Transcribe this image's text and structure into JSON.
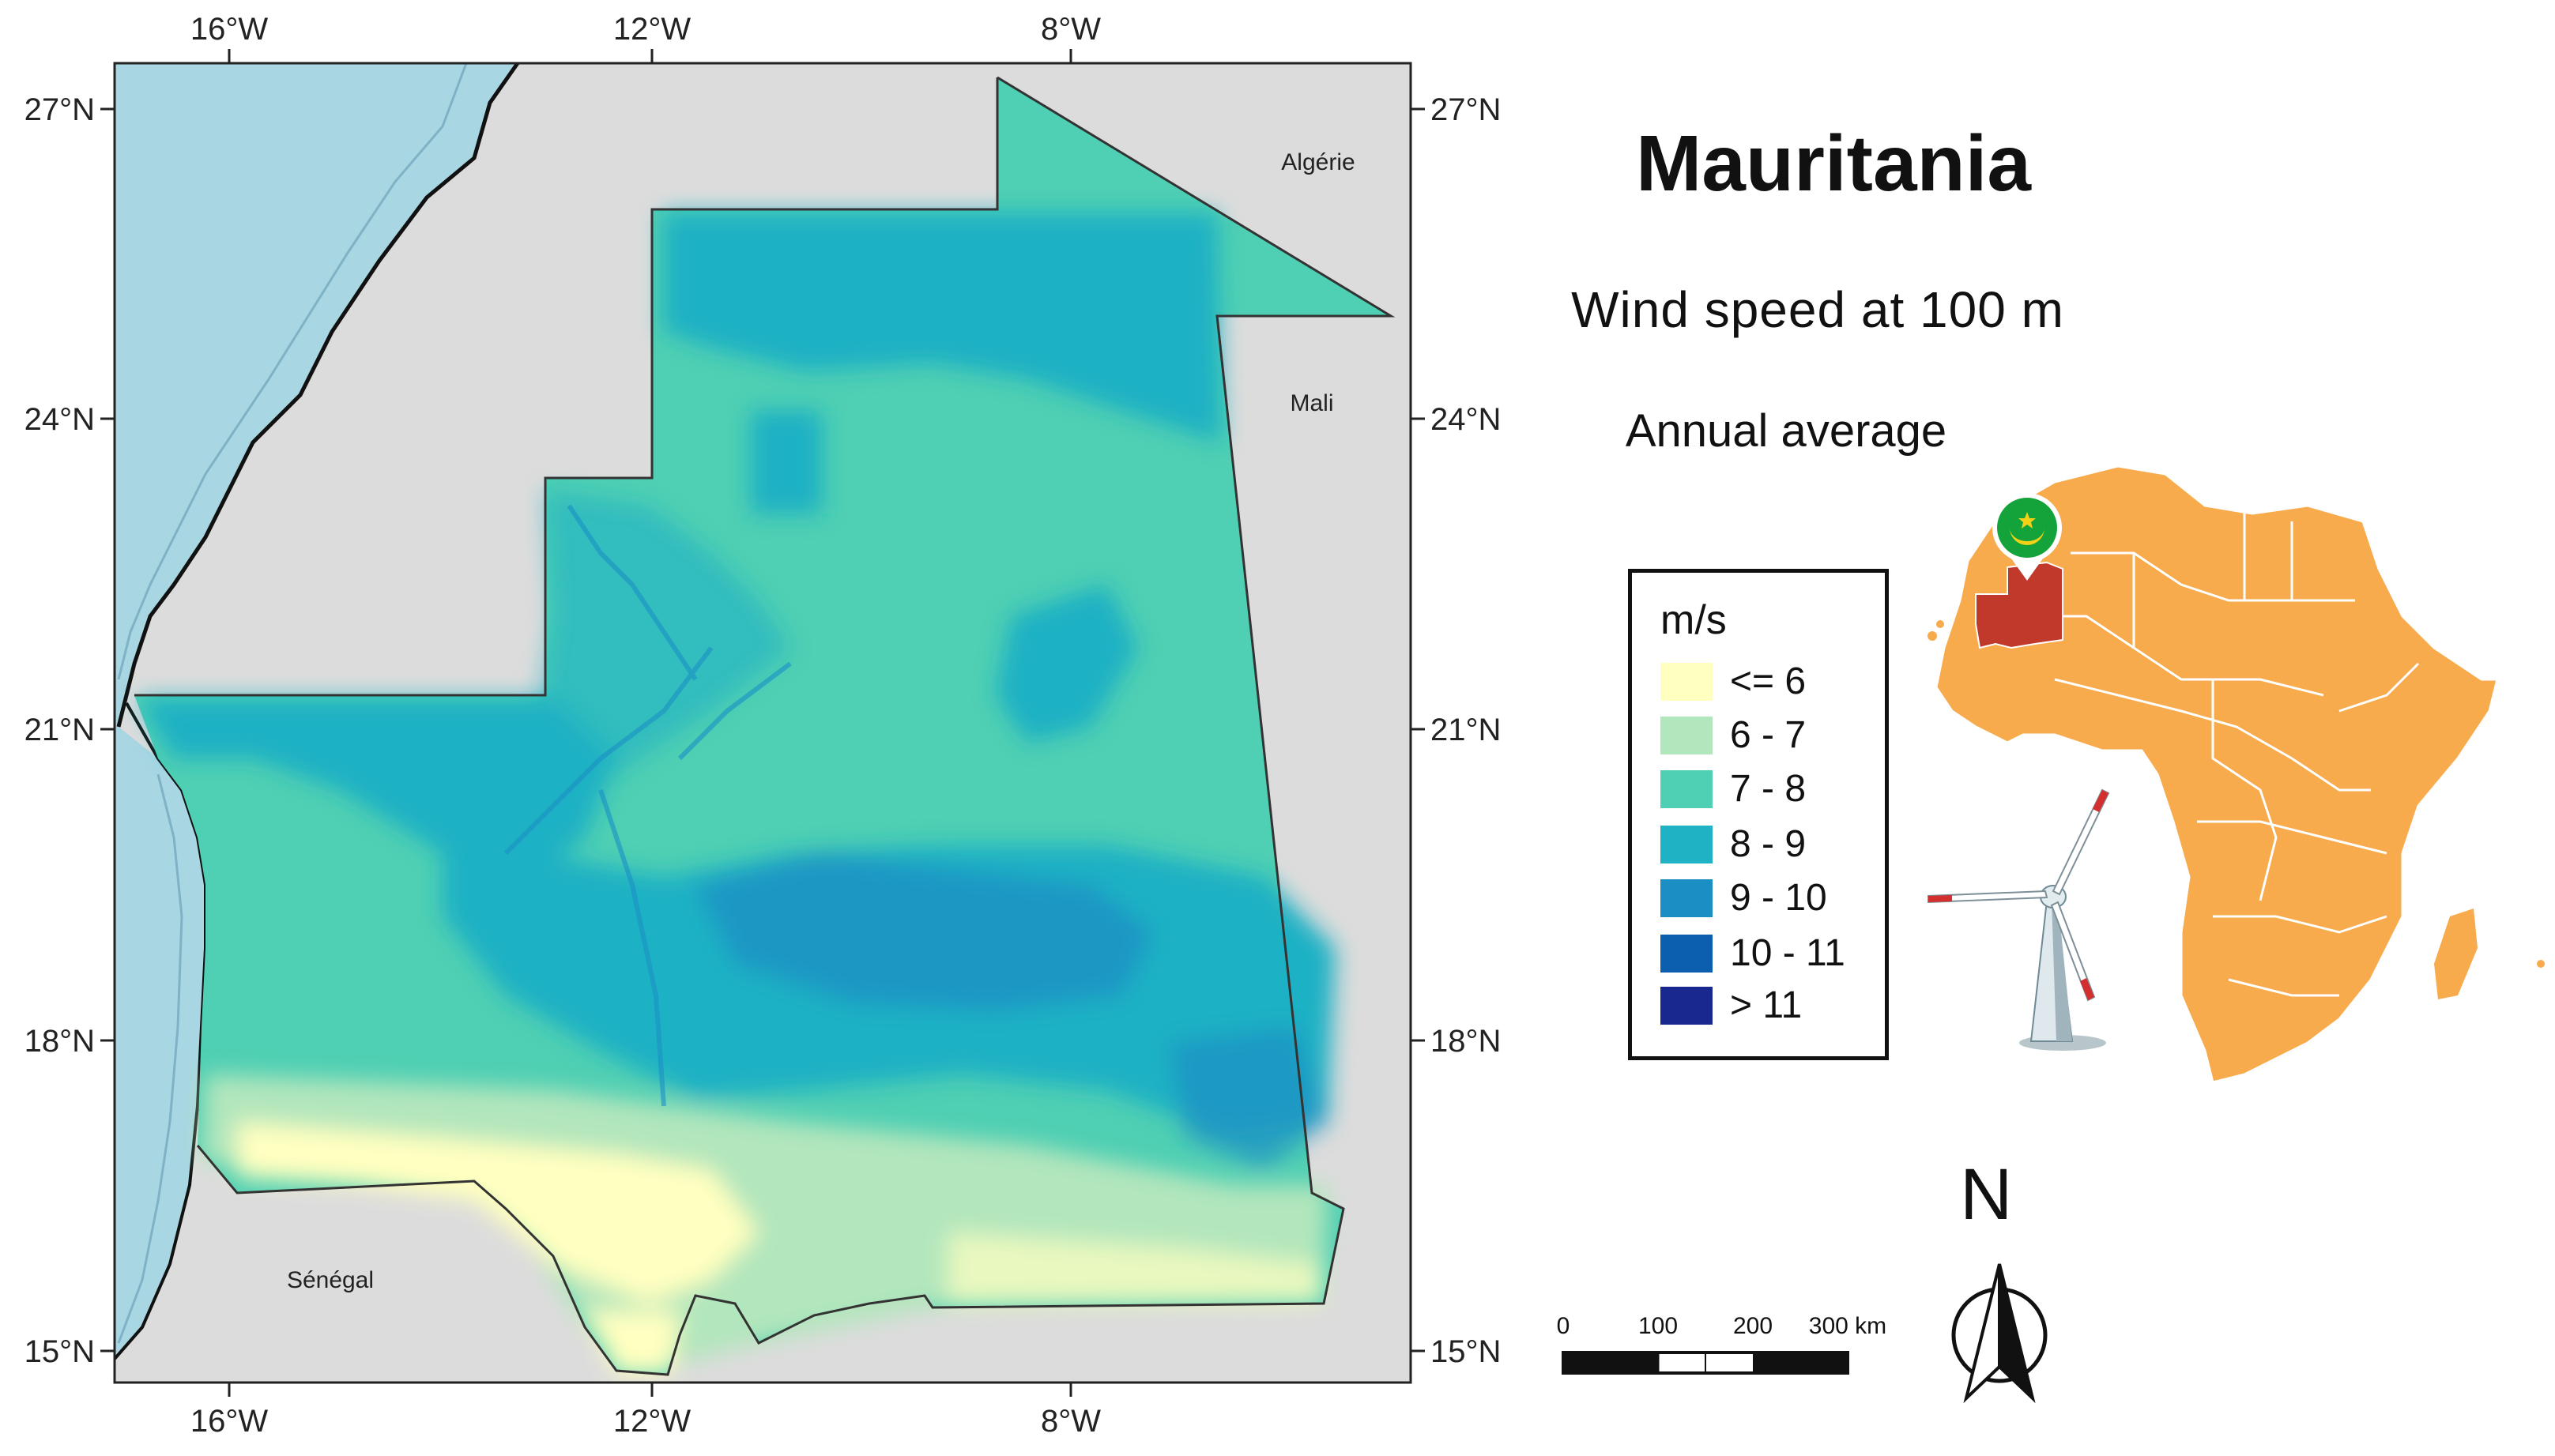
{
  "title": "Mauritania",
  "subtitle": "Wind speed at 100 m",
  "subtitle2": "Annual average",
  "axes": {
    "lon_ticks": [
      "16°W",
      "12°W",
      "8°W"
    ],
    "lat_ticks": [
      "27°N",
      "24°N",
      "21°N",
      "18°N",
      "15°N"
    ]
  },
  "neighbors": [
    "Algérie",
    "Mali",
    "Sénégal"
  ],
  "legend": {
    "unit": "m/s",
    "classes": [
      {
        "label": "<= 6",
        "color": "#ffffc0"
      },
      {
        "label": "6 - 7",
        "color": "#b2e6bc"
      },
      {
        "label": "7 - 8",
        "color": "#4fcfb3"
      },
      {
        "label": "8 - 9",
        "color": "#1fb1c4"
      },
      {
        "label": "9 - 10",
        "color": "#1b8fc4"
      },
      {
        "label": "10 - 11",
        "color": "#0c5fae"
      },
      {
        "label": "> 11",
        "color": "#18288f"
      }
    ]
  },
  "scale_bar": {
    "labels": [
      "0",
      "100",
      "200",
      "300 km"
    ]
  },
  "north_label": "N",
  "colors": {
    "ocean": "#a8d6e2",
    "land_outside": "#dcdcdc",
    "africa": "#f8ab4c",
    "mauritania_highlight": "#c0392b",
    "flag_green": "#14a33a",
    "flag_gold": "#f4d116"
  },
  "icons": [
    "wind-turbine-icon",
    "flag-pin-icon",
    "north-arrow-icon"
  ]
}
